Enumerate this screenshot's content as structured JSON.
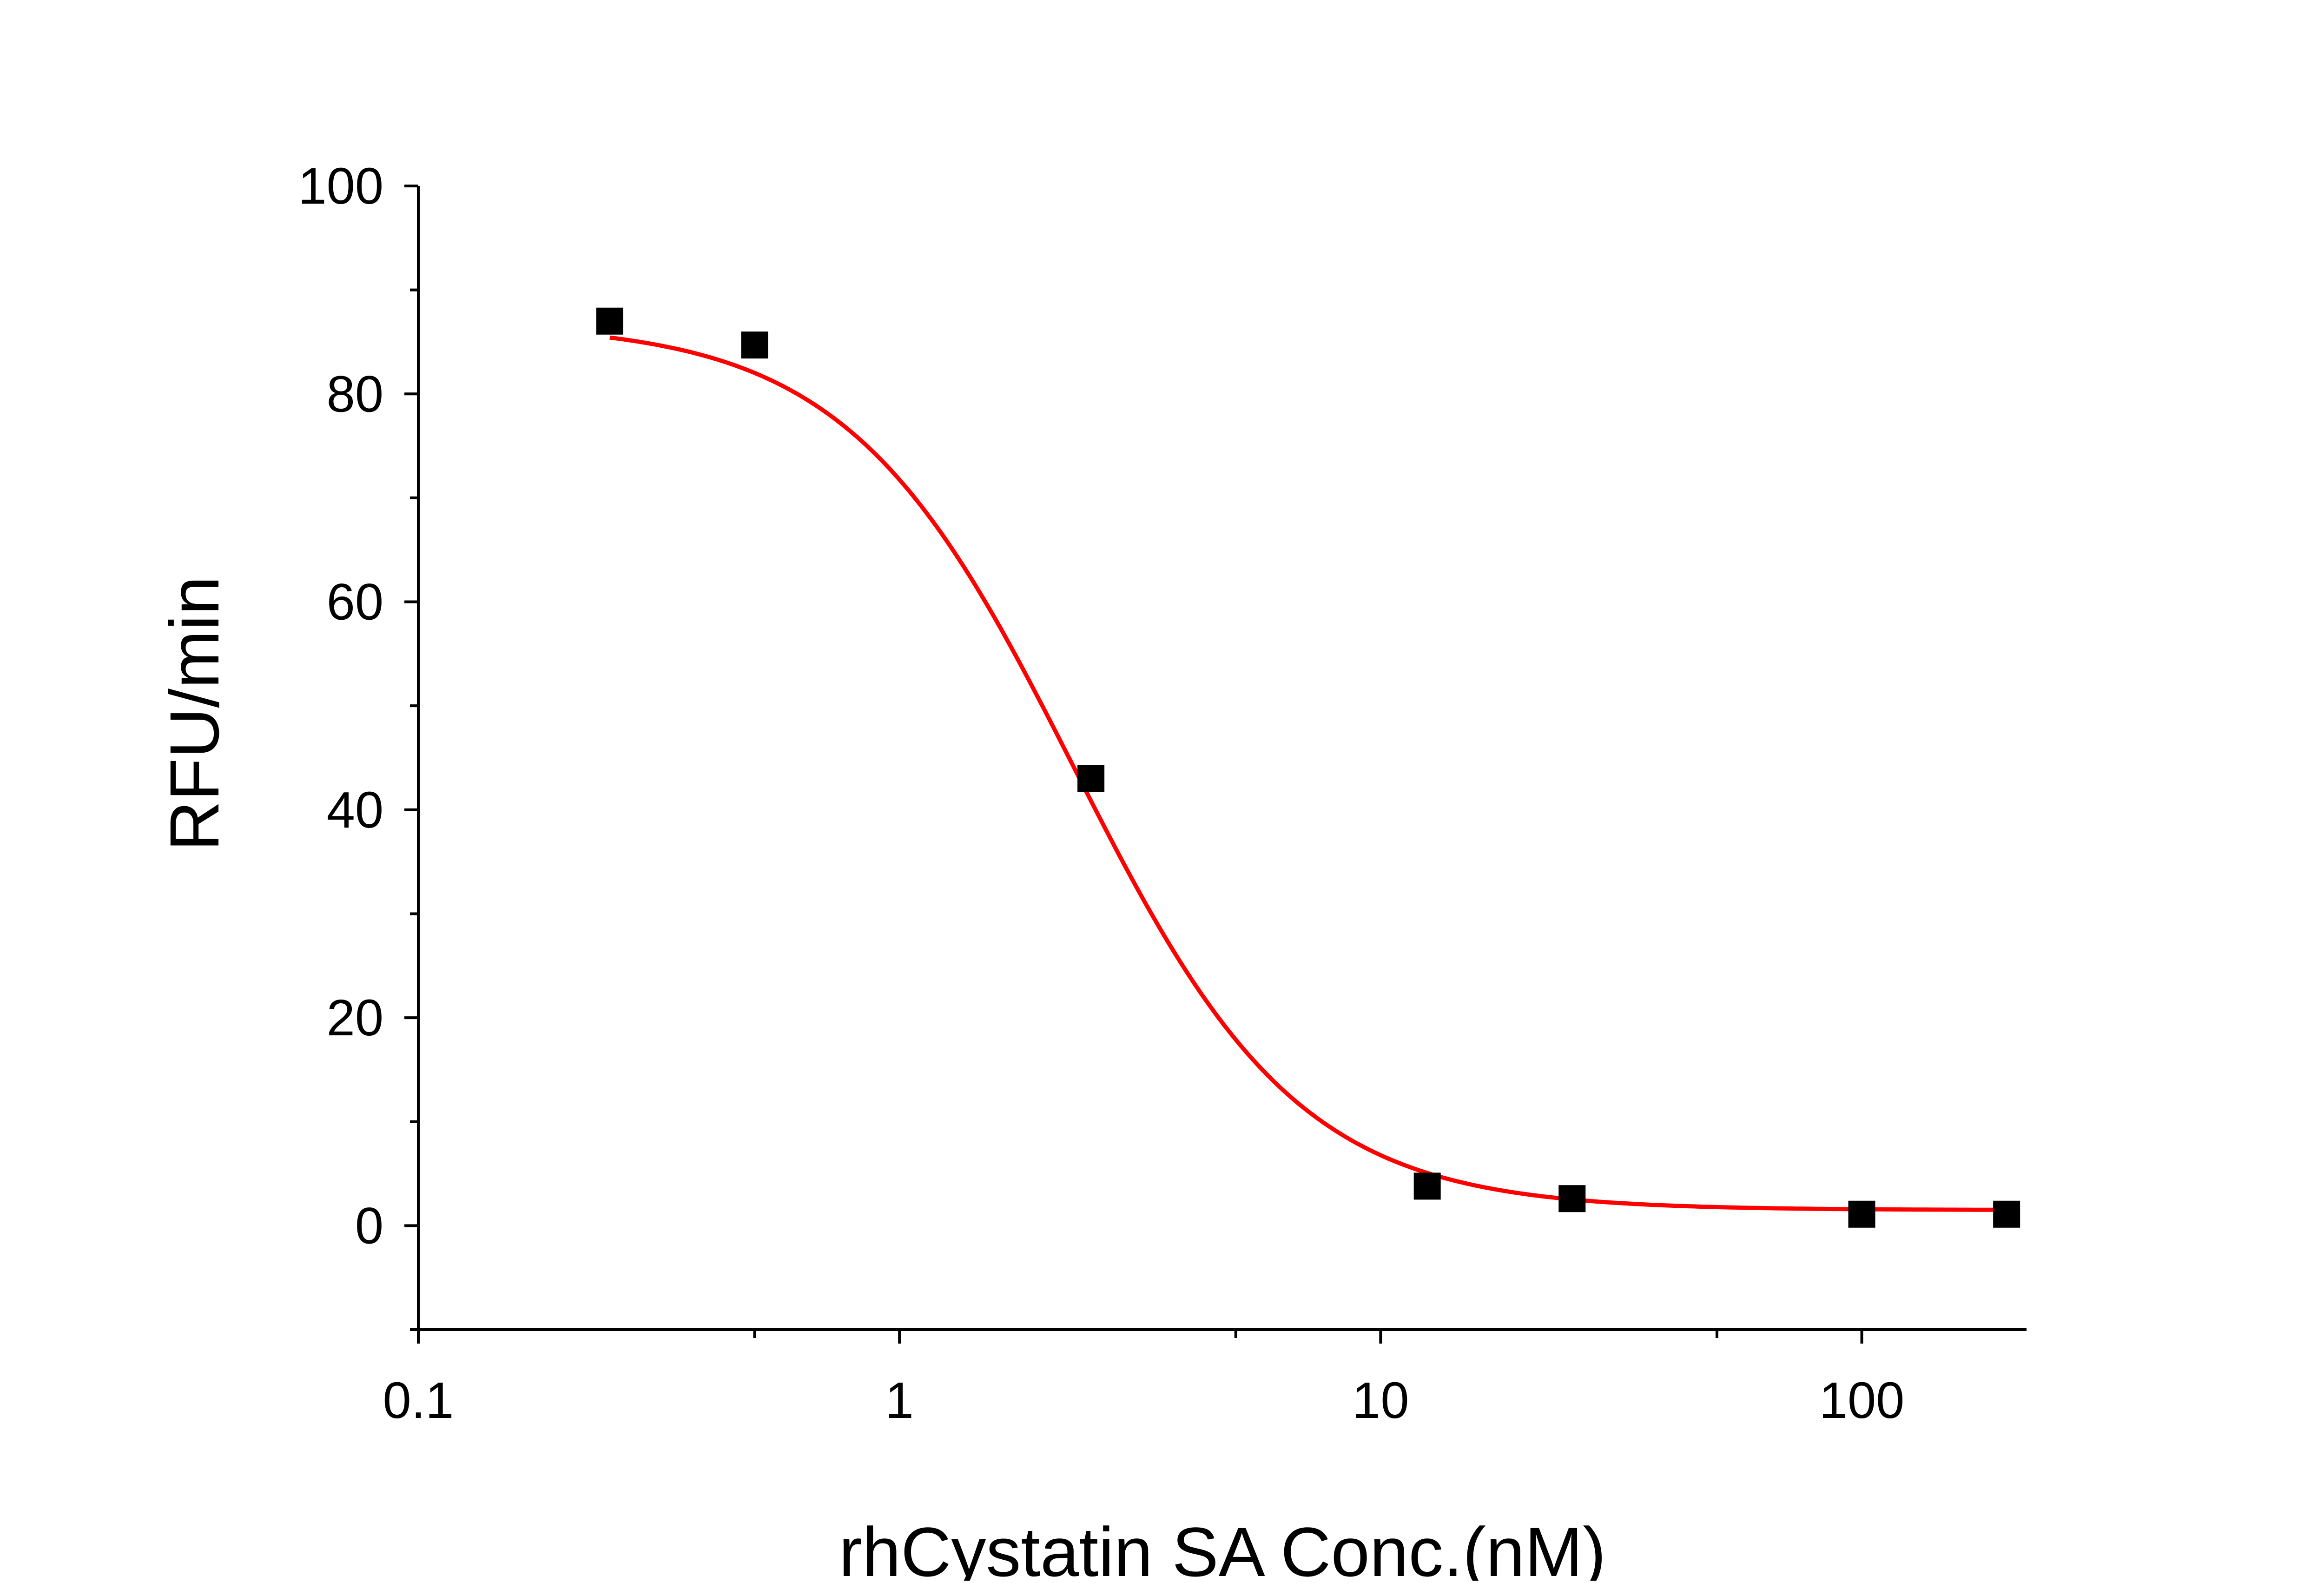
{
  "chart_data": {
    "type": "scatter",
    "title": "",
    "xlabel": "rhCystatin SA Conc.(nM)",
    "ylabel": "RFU/min",
    "x_scale": "log",
    "xlim": [
      0.1,
      220
    ],
    "ylim": [
      -10,
      100
    ],
    "x_ticks": [
      0.1,
      1,
      10,
      100
    ],
    "x_tick_labels": [
      "0.1",
      "1",
      "10",
      "100"
    ],
    "y_ticks": [
      0,
      20,
      40,
      60,
      80,
      100
    ],
    "y_tick_labels": [
      "0",
      "20",
      "40",
      "60",
      "80",
      "100"
    ],
    "grid": false,
    "legend": "none",
    "series": [
      {
        "kind": "points",
        "marker": "square",
        "color": "#000000",
        "x": [
          0.25,
          0.5,
          2.5,
          12.5,
          25,
          100,
          200
        ],
        "y": [
          87.0,
          84.7,
          43.0,
          3.8,
          2.6,
          1.1,
          1.1
        ]
      },
      {
        "kind": "fit",
        "color": "#ff0000",
        "x_range": [
          0.25,
          200
        ],
        "bottom": 1.5,
        "top": 86.8,
        "ec50": 2.3,
        "hill_slope": 1.85
      }
    ]
  }
}
